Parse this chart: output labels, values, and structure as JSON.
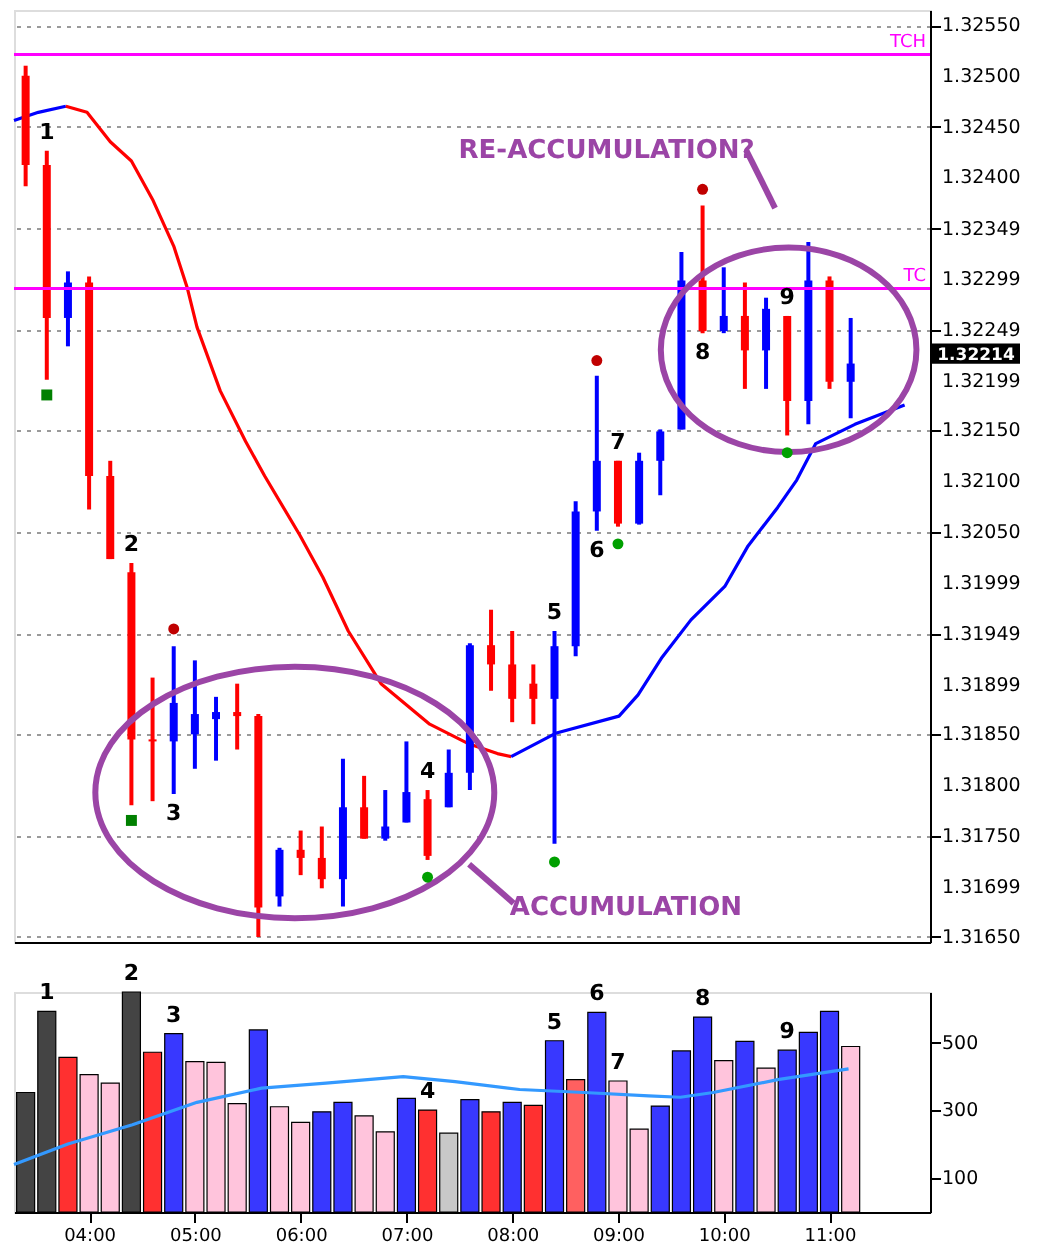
{
  "chart_data": [
    {
      "type": "candlestick",
      "x": [
        3.4,
        3.6,
        3.8,
        4.0,
        4.2,
        4.4,
        4.6,
        4.8,
        5.0,
        5.2,
        5.4,
        5.6,
        5.8,
        6.0,
        6.2,
        6.4,
        6.6,
        6.8,
        7.0,
        7.2,
        7.4,
        7.6,
        7.8,
        8.0,
        8.2,
        8.4,
        8.6,
        8.8,
        9.0,
        9.2,
        9.4,
        9.6,
        9.8,
        10.0,
        10.2,
        10.4,
        10.6,
        10.8,
        11.0,
        11.2
      ],
      "ohlc": [
        [
          1.325,
          1.3251,
          1.32391,
          1.32412
        ],
        [
          1.32412,
          1.32426,
          1.322,
          1.32261
        ],
        [
          1.32261,
          1.32307,
          1.32233,
          1.32296
        ],
        [
          1.32296,
          1.32302,
          1.32072,
          1.32105
        ],
        [
          1.32105,
          1.3212,
          1.32023,
          1.32023
        ],
        [
          1.3201,
          1.32019,
          1.3178,
          1.31845
        ],
        [
          1.31845,
          1.31906,
          1.31784,
          1.31843
        ],
        [
          1.31843,
          1.31937,
          1.31791,
          1.31881
        ],
        [
          1.3185,
          1.31923,
          1.31816,
          1.3187
        ],
        [
          1.31865,
          1.31887,
          1.31824,
          1.31872
        ],
        [
          1.31872,
          1.319,
          1.31835,
          1.31868
        ],
        [
          1.31868,
          1.3187,
          1.3165,
          1.31679
        ],
        [
          1.3169,
          1.31738,
          1.3168,
          1.31736
        ],
        [
          1.31736,
          1.31755,
          1.31711,
          1.31728
        ],
        [
          1.31728,
          1.31759,
          1.31698,
          1.31707
        ],
        [
          1.31707,
          1.31826,
          1.3168,
          1.31778
        ],
        [
          1.31778,
          1.31809,
          1.31747,
          1.31747
        ],
        [
          1.31747,
          1.31795,
          1.31745,
          1.31759
        ],
        [
          1.31763,
          1.31843,
          1.31763,
          1.31793
        ],
        [
          1.31786,
          1.31795,
          1.31726,
          1.3173
        ],
        [
          1.31778,
          1.31835,
          1.31778,
          1.31812
        ],
        [
          1.31812,
          1.3194,
          1.31795,
          1.31938
        ],
        [
          1.31938,
          1.31973,
          1.31893,
          1.31919
        ],
        [
          1.31919,
          1.31952,
          1.31862,
          1.31885
        ],
        [
          1.319,
          1.31919,
          1.3186,
          1.31885
        ],
        [
          1.31885,
          1.31952,
          1.31742,
          1.31937
        ],
        [
          1.31937,
          1.3208,
          1.31927,
          1.3207
        ],
        [
          1.3207,
          1.32204,
          1.32051,
          1.3212
        ],
        [
          1.3212,
          1.3212,
          1.32055,
          1.32058
        ],
        [
          1.32058,
          1.32128,
          1.32057,
          1.3212
        ],
        [
          1.3212,
          1.32151,
          1.32086,
          1.32149
        ],
        [
          1.32151,
          1.32326,
          1.32151,
          1.32298
        ],
        [
          1.32298,
          1.32372,
          1.32246,
          1.32248
        ],
        [
          1.32248,
          1.32311,
          1.32246,
          1.32263
        ],
        [
          1.32263,
          1.32296,
          1.32191,
          1.32229
        ],
        [
          1.32229,
          1.32281,
          1.32191,
          1.3227
        ],
        [
          1.32263,
          1.32263,
          1.32145,
          1.32179
        ],
        [
          1.32179,
          1.32336,
          1.32156,
          1.32298
        ],
        [
          1.32298,
          1.32302,
          1.32191,
          1.32198
        ],
        [
          1.32198,
          1.32261,
          1.32162,
          1.32216
        ]
      ],
      "colors": [
        "#ff0000",
        "#ff0000",
        "#0000ff",
        "#ff0000",
        "#ff0000",
        "#ff0000",
        "#ff0000",
        "#0000ff",
        "#0000ff",
        "#0000ff",
        "#ff0000",
        "#ff0000",
        "#0000ff",
        "#ff0000",
        "#ff0000",
        "#0000ff",
        "#ff0000",
        "#0000ff",
        "#0000ff",
        "#ff0000",
        "#0000ff",
        "#0000ff",
        "#ff0000",
        "#ff0000",
        "#ff0000",
        "#0000ff",
        "#0000ff",
        "#0000ff",
        "#ff0000",
        "#0000ff",
        "#0000ff",
        "#0000ff",
        "#ff0000",
        "#0000ff",
        "#ff0000",
        "#0000ff",
        "#ff0000",
        "#0000ff",
        "#ff0000",
        "#0000ff"
      ],
      "series": [
        {
          "type": "line",
          "color": "#0000ff",
          "x": [
            3.29,
            3.52,
            3.78
          ],
          "values": [
            1.32456,
            1.32464,
            1.3247
          ]
        },
        {
          "type": "line",
          "color": "#ff0000",
          "x": [
            3.78,
            3.98,
            4.2,
            4.4,
            4.6,
            4.8,
            4.93,
            5.02,
            5.24,
            5.48,
            5.66,
            5.99,
            6.21,
            6.45,
            6.76,
            7.22,
            7.58,
            7.86,
            7.99
          ],
          "values": [
            1.3247,
            1.32464,
            1.32435,
            1.32416,
            1.32378,
            1.32332,
            1.3229,
            1.32252,
            1.32189,
            1.32139,
            1.32105,
            1.32047,
            1.32005,
            1.31952,
            1.319,
            1.3186,
            1.31841,
            1.31831,
            1.31828
          ]
        },
        {
          "type": "line",
          "color": "#0000ff",
          "x": [
            7.99,
            8.41,
            9.01,
            9.19,
            9.41,
            9.69,
            10.01,
            10.23,
            10.51,
            10.69,
            10.87,
            11.24,
            11.71
          ],
          "values": [
            1.31828,
            1.31851,
            1.31868,
            1.31889,
            1.31925,
            1.31963,
            1.31996,
            1.32036,
            1.32074,
            1.32101,
            1.32137,
            1.32156,
            1.32175
          ]
        },
        {
          "type": "scatter",
          "marker": "circle",
          "color": "#c00000",
          "x": [
            4.8,
            8.8,
            9.8
          ],
          "values": [
            1.31954,
            1.32219,
            1.32388
          ]
        },
        {
          "type": "scatter",
          "marker": "circle",
          "color": "#00a000",
          "x": [
            7.2,
            8.4,
            9.0,
            10.6
          ],
          "values": [
            1.31709,
            1.31724,
            1.32038,
            1.32128
          ]
        },
        {
          "type": "scatter",
          "marker": "square",
          "color": "#008000",
          "x": [
            3.6,
            4.4
          ],
          "values": [
            1.32185,
            1.31765
          ]
        }
      ],
      "ref_lines": [
        {
          "axis": "y",
          "value": 1.32521,
          "label": "TCH",
          "color": "#ff00ff"
        },
        {
          "axis": "y",
          "value": 1.3229,
          "label": "TC",
          "color": "#ff00ff"
        }
      ],
      "annotations": [
        {
          "text": "1",
          "x": 3.6,
          "y": 1.32426
        },
        {
          "text": "2",
          "x": 4.4,
          "y": 1.32019
        },
        {
          "text": "3",
          "x": 4.8,
          "y": 1.31791
        },
        {
          "text": "4",
          "x": 7.2,
          "y": 1.31795
        },
        {
          "text": "5",
          "x": 8.4,
          "y": 1.31952
        },
        {
          "text": "6",
          "x": 8.8,
          "y": 1.32051
        },
        {
          "text": "7",
          "x": 9.0,
          "y": 1.3212
        },
        {
          "text": "8",
          "x": 9.8,
          "y": 1.32246
        },
        {
          "text": "9",
          "x": 10.6,
          "y": 1.32263
        },
        "RE-ACCUMULATION?",
        "ACCUMULATION",
        "1.32214"
      ],
      "xlim": [
        3.29,
        11.95
      ],
      "ylim": [
        1.31645,
        1.32565
      ],
      "yticks": [
        {
          "value": 1.3255,
          "label": "1.32550"
        },
        {
          "value": 1.325,
          "label": "1.32500"
        },
        {
          "value": 1.3245,
          "label": "1.32450"
        },
        {
          "value": 1.324,
          "label": "1.32400"
        },
        1.32349,
        1.32299,
        1.32249,
        1.32199,
        {
          "value": 1.3215,
          "label": "1.32150"
        },
        {
          "value": 1.321,
          "label": "1.32100"
        },
        {
          "value": 1.3205,
          "label": "1.32050"
        },
        1.31999,
        1.31949,
        1.31899,
        {
          "value": 1.3185,
          "label": "1.31850"
        },
        {
          "value": 1.318,
          "label": "1.31800"
        },
        {
          "value": 1.3175,
          "label": "1.31750"
        },
        1.31699,
        {
          "value": 1.3165,
          "label": "1.31650"
        }
      ],
      "grid": "y",
      "tick_labels": "y"
    },
    {
      "type": "bar",
      "series": [
        {
          "type": "bar",
          "x": [
            3.4,
            3.6,
            3.8,
            4.0,
            4.2,
            4.4,
            4.6,
            4.8,
            5.0,
            5.2,
            5.4,
            5.6,
            5.8,
            6.0,
            6.2,
            6.4,
            6.6,
            6.8,
            7.0,
            7.2,
            7.4,
            7.6,
            7.8,
            8.0,
            8.2,
            8.4,
            8.6,
            8.8,
            9.0,
            9.2,
            9.4,
            9.6,
            9.8,
            10.0,
            10.2,
            10.4,
            10.6,
            10.8,
            11.0,
            11.2
          ],
          "values": [
            353,
            593,
            457,
            406,
            381,
            650,
            472,
            527,
            444,
            442,
            320,
            538,
            311,
            265,
            296,
            324,
            284,
            237,
            336,
            301,
            233,
            332,
            296,
            324,
            315,
            506,
            391,
            590,
            387,
            245,
            313,
            476,
            576,
            447,
            504,
            425,
            478,
            531,
            593,
            489
          ],
          "colors": [
            "#444444",
            "#444444",
            "#ff3030",
            "#ffc4dc",
            "#ffc4dc",
            "#444444",
            "#ff3030",
            "#3838ff",
            "#ffc4dc",
            "#ffc4dc",
            "#ffc4dc",
            "#3838ff",
            "#ffc4dc",
            "#ffc4dc",
            "#3838ff",
            "#3838ff",
            "#ffc4dc",
            "#ffc4dc",
            "#3838ff",
            "#ff3030",
            "#c8c8c8",
            "#3838ff",
            "#ff3030",
            "#3838ff",
            "#ff3030",
            "#3838ff",
            "#ff6060",
            "#3838ff",
            "#ffc4dc",
            "#ffc4dc",
            "#3838ff",
            "#3838ff",
            "#3838ff",
            "#ffc4dc",
            "#3838ff",
            "#ffc4dc",
            "#3838ff",
            "#3838ff",
            "#3838ff",
            "#ffc4dc"
          ]
        },
        {
          "type": "line",
          "color": "#3399ff",
          "x": [
            3.29,
            3.8,
            4.41,
            5.02,
            5.63,
            6.24,
            6.97,
            7.46,
            8.07,
            8.68,
            9.29,
            9.59,
            9.9,
            10.51,
            11.18
          ],
          "values": [
            140,
            201,
            258,
            324,
            366,
            381,
            400,
            385,
            362,
            353,
            343,
            339,
            353,
            391,
            423
          ]
        }
      ],
      "annotations": [
        {
          "text": "1",
          "x": 3.6,
          "y": 593
        },
        {
          "text": "2",
          "x": 4.4,
          "y": 650
        },
        {
          "text": "3",
          "x": 4.8,
          "y": 527
        },
        {
          "text": "4",
          "x": 7.2,
          "y": 301
        },
        {
          "text": "5",
          "x": 8.4,
          "y": 506
        },
        {
          "text": "6",
          "x": 8.8,
          "y": 590
        },
        {
          "text": "7",
          "x": 9.0,
          "y": 387
        },
        {
          "text": "8",
          "x": 9.8,
          "y": 576
        },
        {
          "text": "9",
          "x": 10.6,
          "y": 478
        }
      ],
      "xlim": [
        3.29,
        11.95
      ],
      "ylim": [
        0,
        650
      ],
      "yticks": [
        100,
        300,
        500
      ],
      "xticks": [
        {
          "value": 4,
          "label": "04:00"
        },
        {
          "value": 5,
          "label": "05:00"
        },
        {
          "value": 6,
          "label": "06:00"
        },
        {
          "value": 7,
          "label": "07:00"
        },
        {
          "value": 8,
          "label": "08:00"
        },
        {
          "value": 9,
          "label": "09:00"
        },
        {
          "value": 10,
          "label": "10:00"
        },
        {
          "value": 11,
          "label": "11:00"
        }
      ]
    }
  ]
}
